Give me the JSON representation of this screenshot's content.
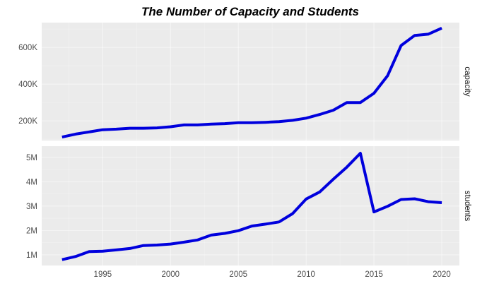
{
  "chart_data": {
    "type": "line",
    "title": "The Number of Capacity and Students",
    "xlabel": "",
    "ylabel": "",
    "layout": "facet-vertical",
    "grid": true,
    "legend": "none",
    "line_color": "#0000dd",
    "panel_background": "#ebebeb",
    "x": [
      1992,
      1993,
      1994,
      1995,
      1996,
      1997,
      1998,
      1999,
      2000,
      2001,
      2002,
      2003,
      2004,
      2005,
      2006,
      2007,
      2008,
      2009,
      2010,
      2011,
      2012,
      2013,
      2014,
      2015,
      2016,
      2017,
      2018,
      2019,
      2020
    ],
    "xlim": [
      1990.5,
      2021.3
    ],
    "xticks": [
      1995,
      2000,
      2005,
      2010,
      2015,
      2020
    ],
    "xtick_labels": [
      "1995",
      "2000",
      "2005",
      "2010",
      "2015",
      "2020"
    ],
    "panels": [
      {
        "strip_label": "capacity",
        "ylim": [
          93000,
          735000
        ],
        "yticks": [
          200000,
          400000,
          600000
        ],
        "ytick_labels": [
          "200K",
          "400K",
          "600K"
        ],
        "values": [
          112000,
          128000,
          140000,
          152000,
          155000,
          160000,
          160000,
          162000,
          168000,
          178000,
          178000,
          182000,
          185000,
          190000,
          190000,
          192000,
          196000,
          203000,
          215000,
          235000,
          258000,
          300000,
          300000,
          350000,
          445000,
          610000,
          665000,
          672000,
          705000
        ]
      },
      {
        "strip_label": "students",
        "ylim": [
          560000,
          5460000
        ],
        "yticks": [
          1000000,
          2000000,
          3000000,
          4000000,
          5000000
        ],
        "ytick_labels": [
          "1M",
          "2M",
          "3M",
          "4M",
          "5M"
        ],
        "values": [
          800000,
          930000,
          1130000,
          1150000,
          1200000,
          1260000,
          1380000,
          1400000,
          1440000,
          1520000,
          1610000,
          1810000,
          1880000,
          1990000,
          2180000,
          2260000,
          2350000,
          2690000,
          3290000,
          3580000,
          4100000,
          4600000,
          5170000,
          2760000,
          2990000,
          3270000,
          3300000,
          3180000,
          3140000
        ]
      }
    ]
  }
}
